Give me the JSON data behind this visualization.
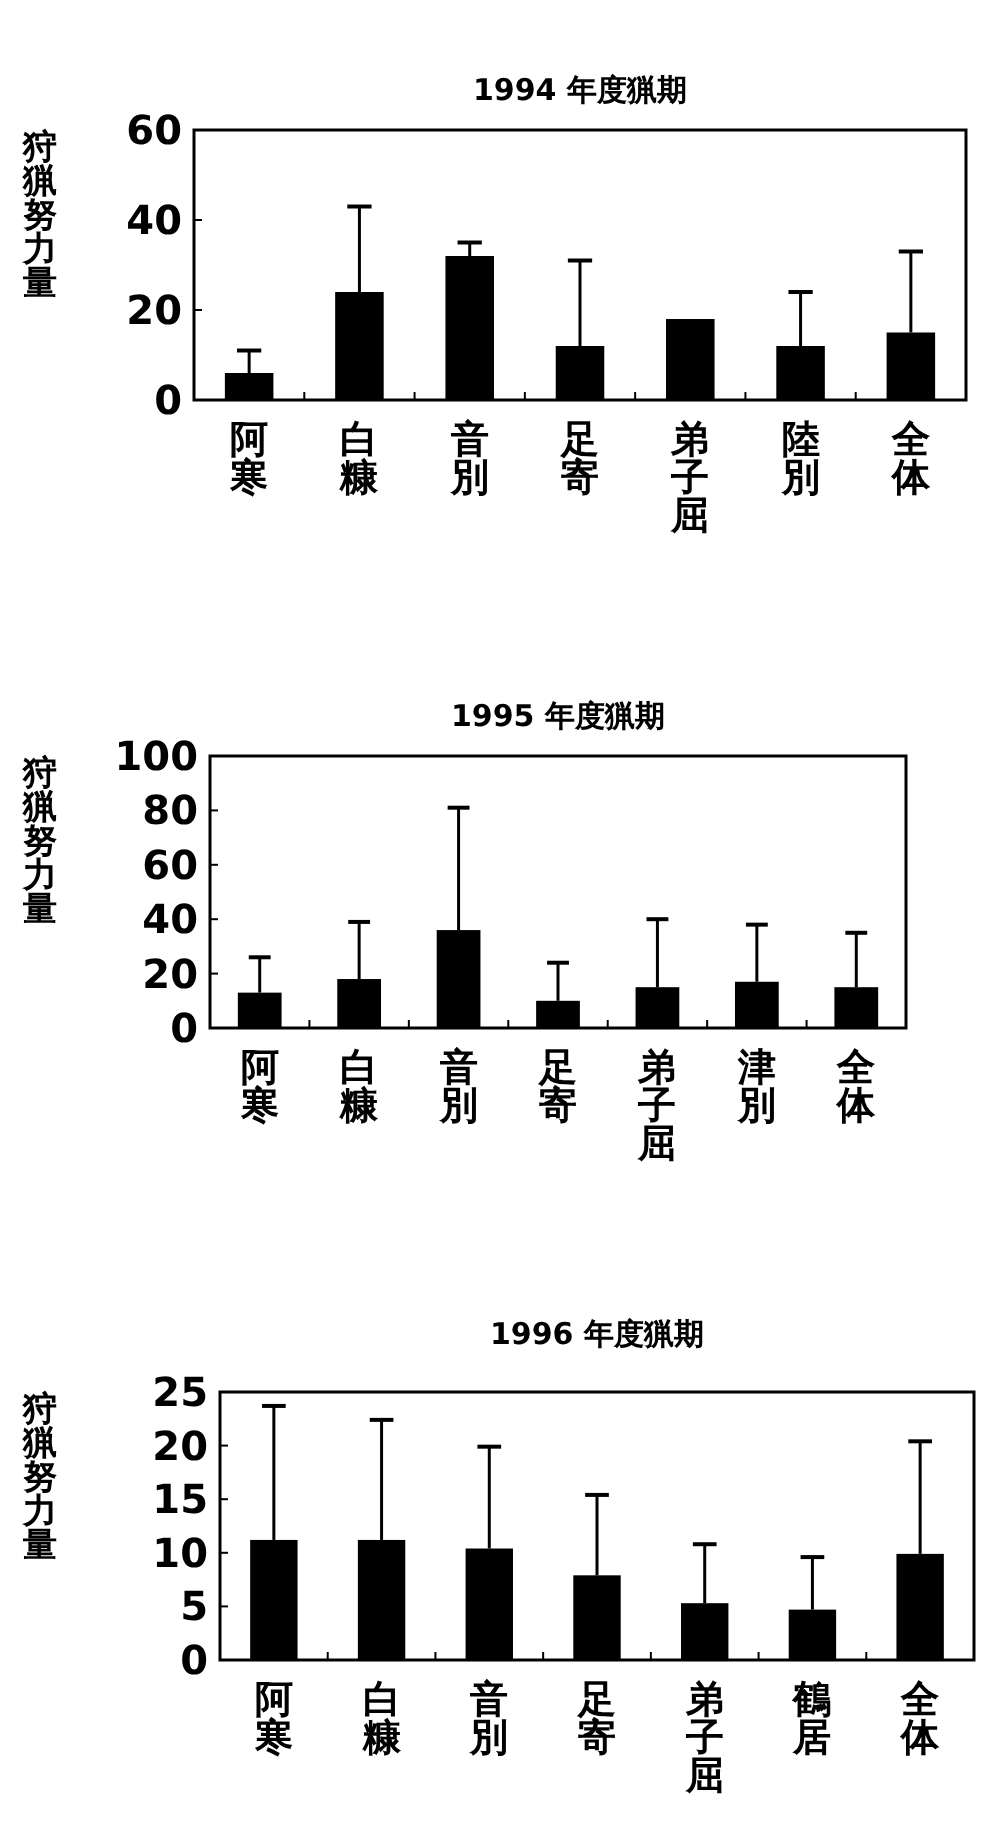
{
  "chart_data": [
    {
      "type": "bar",
      "title": "1994 年度猟期",
      "ylabel": "狩猟努力量",
      "categories": [
        "阿寒",
        "白糠",
        "音別",
        "足寄",
        "弟子屈",
        "陸別",
        "全体"
      ],
      "values": [
        6,
        24,
        32,
        12,
        18,
        12,
        15
      ],
      "errors": [
        [
          6,
          11
        ],
        [
          24,
          43
        ],
        [
          32,
          35
        ],
        [
          12,
          31
        ],
        null,
        [
          12,
          24
        ],
        [
          15,
          33
        ]
      ],
      "color": "#000000",
      "ylim": [
        0,
        60
      ],
      "yticks": [
        0,
        20,
        40,
        60
      ]
    },
    {
      "type": "bar",
      "title": "1995 年度猟期",
      "ylabel": "狩猟努力量",
      "categories": [
        "阿寒",
        "白糠",
        "音別",
        "足寄",
        "弟子屈",
        "津別",
        "全体"
      ],
      "values": [
        13,
        18,
        36,
        10,
        15,
        17,
        15
      ],
      "errors": [
        [
          13,
          26
        ],
        [
          18,
          39
        ],
        [
          36,
          81
        ],
        [
          10,
          24
        ],
        [
          15,
          40
        ],
        [
          17,
          38
        ],
        [
          15,
          35
        ]
      ],
      "color": "#000000",
      "ylim": [
        0,
        100
      ],
      "yticks": [
        0,
        20,
        40,
        60,
        80,
        100
      ]
    },
    {
      "type": "bar",
      "title": "1996 年度猟期",
      "ylabel": "狩猟努力量",
      "categories": [
        "阿寒",
        "白糠",
        "音別",
        "足寄",
        "弟子屈",
        "鶴居",
        "全体"
      ],
      "values": [
        11.2,
        11.2,
        10.4,
        7.9,
        5.3,
        4.7,
        9.9
      ],
      "errors": [
        [
          11.2,
          23.7
        ],
        [
          11.2,
          22.4
        ],
        [
          10.4,
          19.9
        ],
        [
          7.9,
          15.4
        ],
        [
          5.3,
          10.8
        ],
        [
          4.7,
          9.6
        ],
        [
          9.9,
          20.4
        ]
      ],
      "color": "#000000",
      "ylim": [
        0,
        25
      ],
      "yticks": [
        0,
        5,
        10,
        15,
        20,
        25
      ]
    }
  ]
}
